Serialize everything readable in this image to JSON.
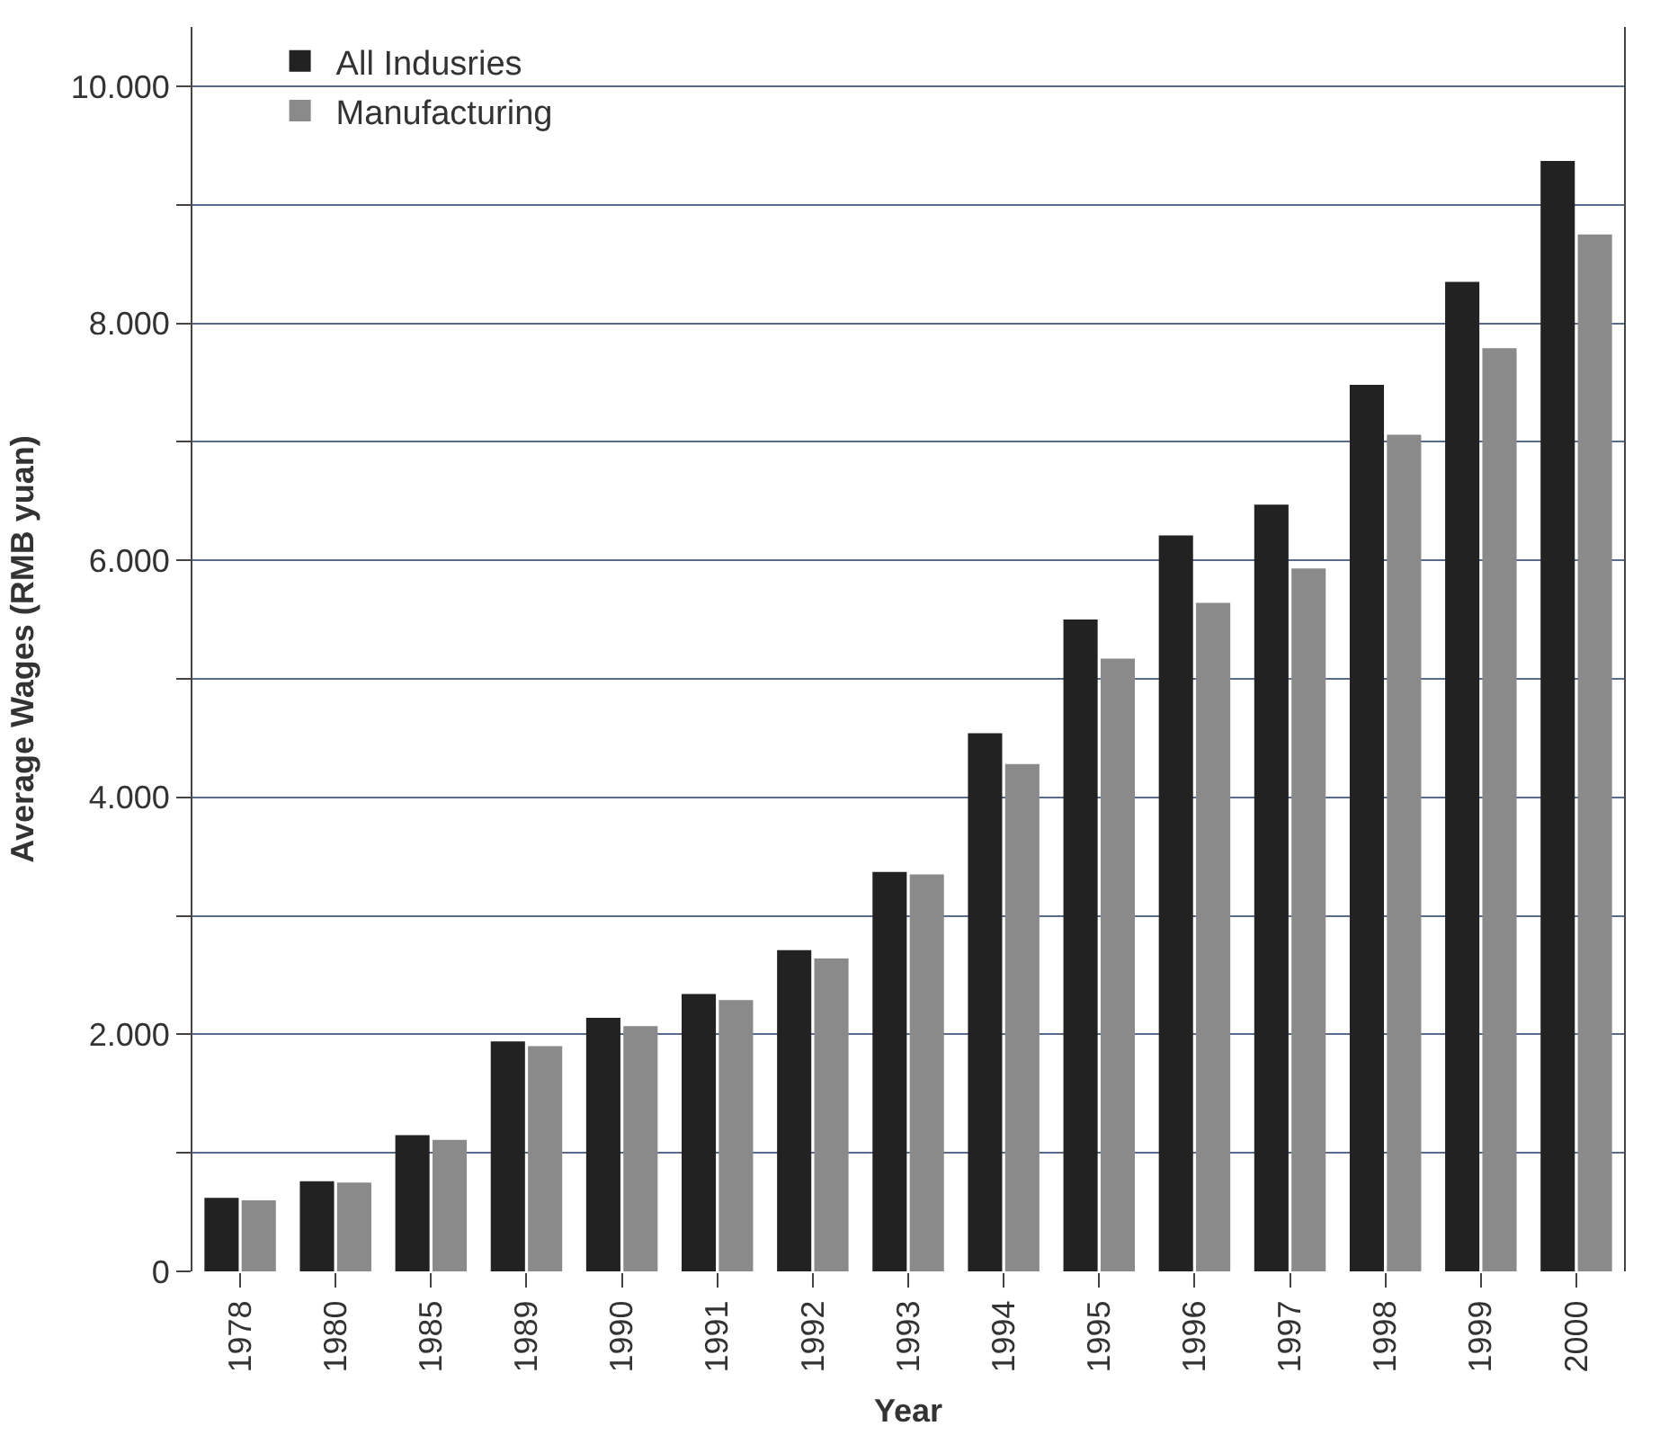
{
  "chart_data": {
    "type": "bar",
    "xlabel": "Year",
    "ylabel": "Average Wages (RMB yuan)",
    "categories": [
      "1978",
      "1980",
      "1985",
      "1989",
      "1990",
      "1991",
      "1992",
      "1993",
      "1994",
      "1995",
      "1996",
      "1997",
      "1998",
      "1999",
      "2000"
    ],
    "series": [
      {
        "name": "All Indusries",
        "color": "#222222",
        "values": [
          620,
          760,
          1150,
          1940,
          2140,
          2340,
          2710,
          3370,
          4540,
          5500,
          6210,
          6470,
          7480,
          8350,
          9370
        ]
      },
      {
        "name": "Manufacturing",
        "color": "#8a8a8a",
        "values": [
          600,
          750,
          1110,
          1900,
          2070,
          2290,
          2640,
          3350,
          4280,
          5170,
          5640,
          5930,
          7060,
          7790,
          8750
        ]
      }
    ],
    "ylim": [
      0,
      10500
    ],
    "yticks": [
      0,
      {
        "value": 1000,
        "label": null
      },
      {
        "value": 2000,
        "label": "2.000"
      },
      {
        "value": 3000,
        "label": null
      },
      {
        "value": 4000,
        "label": "4.000"
      },
      {
        "value": 5000,
        "label": null
      },
      {
        "value": 6000,
        "label": "6.000"
      },
      {
        "value": 7000,
        "label": null
      },
      {
        "value": 8000,
        "label": "8.000"
      },
      {
        "value": 9000,
        "label": null
      },
      {
        "value": 10000,
        "label": "10.000"
      }
    ],
    "grid": "y",
    "legend": "top left"
  }
}
